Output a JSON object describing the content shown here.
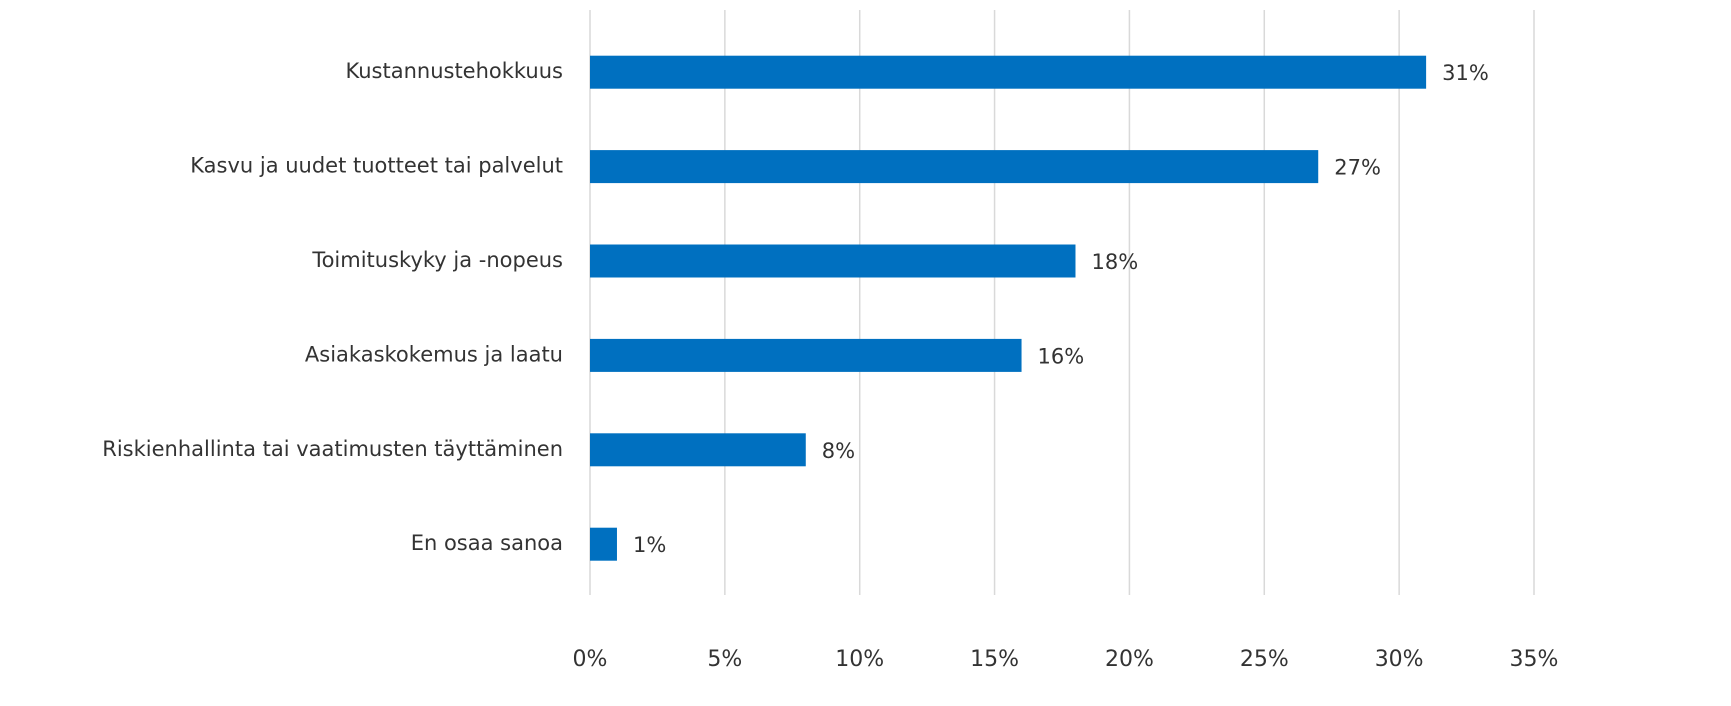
{
  "chart_data": {
    "type": "barh",
    "categories": [
      "Kustannustehokkuus",
      "Kasvu ja uudet tuotteet tai palvelut",
      "Toimituskyky ja -nopeus",
      "Asiakaskokemus ja laatu",
      "Riskienhallinta tai vaatimusten täyttäminen",
      "En osaa sanoa"
    ],
    "values": [
      31,
      27,
      18,
      16,
      8,
      1
    ],
    "value_labels": [
      "31%",
      "27%",
      "18%",
      "16%",
      "8%",
      "1%"
    ],
    "color": "#0070c0",
    "xlim": [
      0,
      35
    ],
    "xticks": [
      {
        "value": 0,
        "label": "0%"
      },
      {
        "value": 5,
        "label": "5%"
      },
      {
        "value": 10,
        "label": "10%"
      },
      {
        "value": 15,
        "label": "15%"
      },
      {
        "value": 20,
        "label": "20%"
      },
      {
        "value": 25,
        "label": "25%"
      },
      {
        "value": 30,
        "label": "30%"
      },
      {
        "value": 35,
        "label": "35%"
      }
    ],
    "grid": true
  }
}
